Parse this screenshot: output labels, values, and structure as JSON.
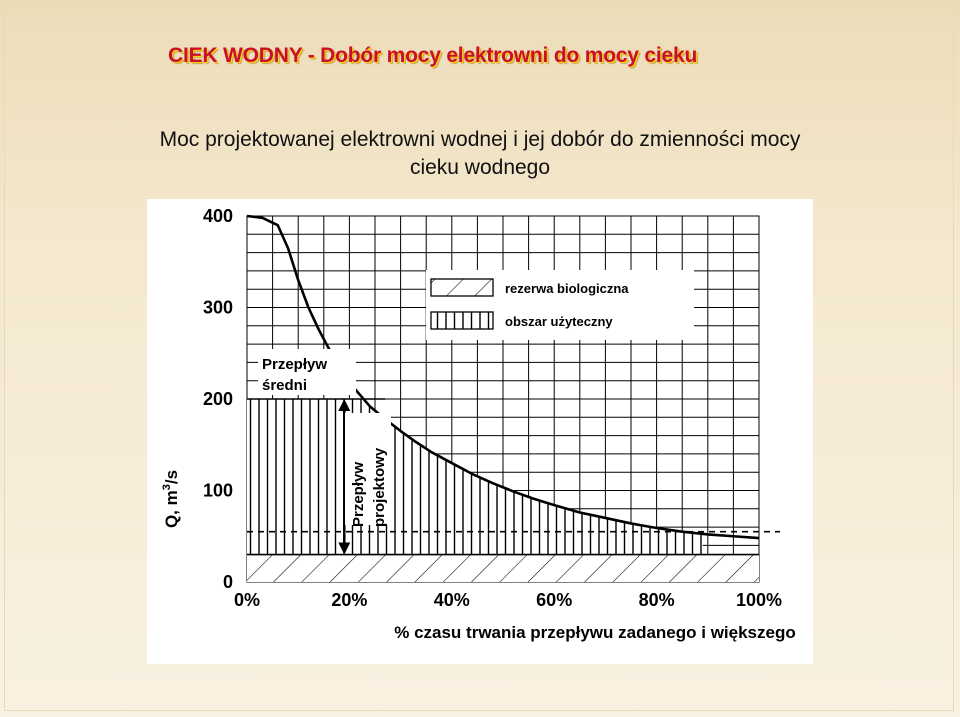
{
  "slide": {
    "title": "CIEK WODNY  -  Dobór mocy elektrowni do mocy cieku",
    "subtitle_line1": "Moc projektowanej elektrowni wodnej i jej dobór do zmienności mocy",
    "subtitle_line2": "cieku wodnego"
  },
  "chart_data": {
    "type": "area",
    "x_tick_labels": [
      "0%",
      "20%",
      "40%",
      "60%",
      "80%",
      "100%"
    ],
    "y_tick_labels": [
      "0",
      "100",
      "200",
      "300",
      "400"
    ],
    "xlim": [
      0,
      100
    ],
    "ylim": [
      0,
      400
    ],
    "xlabel": "% czasu trwania przepływu zadanego i większego",
    "ylabel_prefix": "Q,  m",
    "ylabel_sup": "3",
    "ylabel_suffix": "/s",
    "grid": true,
    "series": [
      {
        "x": [
          0,
          3,
          6,
          8,
          10,
          12,
          14,
          16,
          18,
          20,
          22,
          24,
          27,
          30,
          33,
          36,
          40,
          44,
          48,
          52,
          56,
          60,
          65,
          70,
          75,
          80,
          85,
          90,
          95,
          100
        ],
        "values": [
          400,
          398,
          390,
          365,
          330,
          300,
          276,
          255,
          236,
          218,
          205,
          192,
          178,
          165,
          153,
          142,
          130,
          118,
          108,
          99,
          91,
          84,
          76,
          70,
          64,
          59,
          55,
          52,
          50,
          48
        ]
      }
    ],
    "reference_lines": {
      "mean_flow": 200,
      "biological_reserve": 30,
      "design_flow_level": 55
    },
    "legend": [
      {
        "label": "rezerwa biologiczna",
        "pattern": "diagonal-hatch"
      },
      {
        "label": "obszar użyteczny",
        "pattern": "vertical-hatch"
      }
    ],
    "legend_position": "top-right",
    "annotations": {
      "mean_flow_line1": "Przepływ",
      "mean_flow_line2": "średni",
      "design_flow_line1": "Przepływ",
      "design_flow_line2": "projektowy"
    }
  }
}
